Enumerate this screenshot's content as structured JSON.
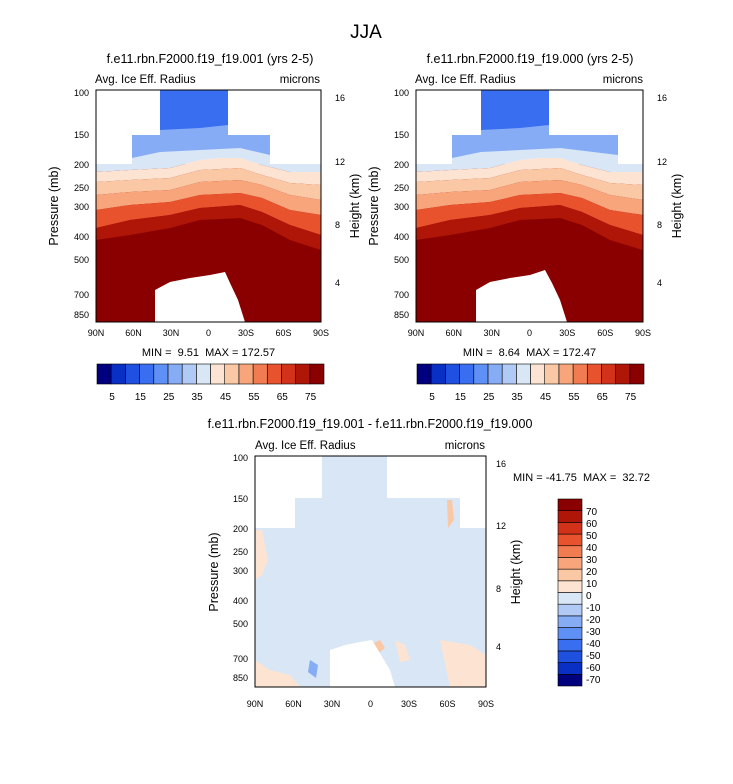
{
  "figure": {
    "title": "JJA"
  },
  "palette": {
    "full": [
      "#00007f",
      "#0a2fc4",
      "#2050e0",
      "#3a6ef0",
      "#5e90f5",
      "#86acf5",
      "#b0c9f5",
      "#d8e6f6",
      "#fde4d2",
      "#fbc8a6",
      "#f8a57c",
      "#f27c52",
      "#e8532e",
      "#d2321a",
      "#b01608",
      "#8a0000"
    ],
    "diff": [
      "#00007f",
      "#0a2fc4",
      "#2050e0",
      "#3a6ef0",
      "#5e90f5",
      "#86acf5",
      "#b0c9f5",
      "#d8e6f6",
      "#fde4d2",
      "#fbc8a6",
      "#f8a57c",
      "#f27c52",
      "#e8532e",
      "#d2321a",
      "#b01608",
      "#8a0000"
    ]
  },
  "chart_data": [
    {
      "type": "heatmap",
      "title": "f.e11.rbn.F2000.f19_f19.001 (yrs 2-5)",
      "left_label": "Avg. Ice Eff. Radius",
      "right_label": "microns",
      "ylabel": "Pressure (mb)",
      "y2label": "Height (km)",
      "xticks": [
        "90N",
        "60N",
        "30N",
        "0",
        "30S",
        "60S",
        "90S"
      ],
      "yticks": [
        "100",
        "150",
        "200",
        "250",
        "300",
        "400",
        "500",
        "700",
        "850"
      ],
      "y2ticks": [
        "16",
        "12",
        "8",
        "4"
      ],
      "stats": "MIN =  9.51  MAX = 172.57",
      "min": 9.51,
      "max": 172.57,
      "colorbar_labels": [
        "5",
        "15",
        "25",
        "35",
        "45",
        "55",
        "65",
        "75"
      ]
    },
    {
      "type": "heatmap",
      "title": "f.e11.rbn.F2000.f19_f19.000 (yrs 2-5)",
      "left_label": "Avg. Ice Eff. Radius",
      "right_label": "microns",
      "ylabel": "Pressure (mb)",
      "y2label": "Height (km)",
      "xticks": [
        "90N",
        "60N",
        "30N",
        "0",
        "30S",
        "60S",
        "90S"
      ],
      "yticks": [
        "100",
        "150",
        "200",
        "250",
        "300",
        "400",
        "500",
        "700",
        "850"
      ],
      "y2ticks": [
        "16",
        "12",
        "8",
        "4"
      ],
      "stats": "MIN =  8.64  MAX = 172.47",
      "min": 8.64,
      "max": 172.47,
      "colorbar_labels": [
        "5",
        "15",
        "25",
        "35",
        "45",
        "55",
        "65",
        "75"
      ]
    },
    {
      "type": "heatmap",
      "title": "f.e11.rbn.F2000.f19_f19.001 - f.e11.rbn.F2000.f19_f19.000",
      "left_label": "Avg. Ice Eff. Radius",
      "right_label": "microns",
      "ylabel": "Pressure (mb)",
      "y2label": "Height (km)",
      "xticks": [
        "90N",
        "60N",
        "30N",
        "0",
        "30S",
        "60S",
        "90S"
      ],
      "yticks": [
        "100",
        "150",
        "200",
        "250",
        "300",
        "400",
        "500",
        "700",
        "850"
      ],
      "y2ticks": [
        "16",
        "12",
        "8",
        "4"
      ],
      "stats": "MIN = -41.75  MAX =  32.72",
      "min": -41.75,
      "max": 32.72,
      "colorbar_labels": [
        "70",
        "60",
        "50",
        "40",
        "30",
        "20",
        "10",
        "0",
        "-10",
        "-20",
        "-30",
        "-40",
        "-50",
        "-60",
        "-70"
      ]
    }
  ]
}
